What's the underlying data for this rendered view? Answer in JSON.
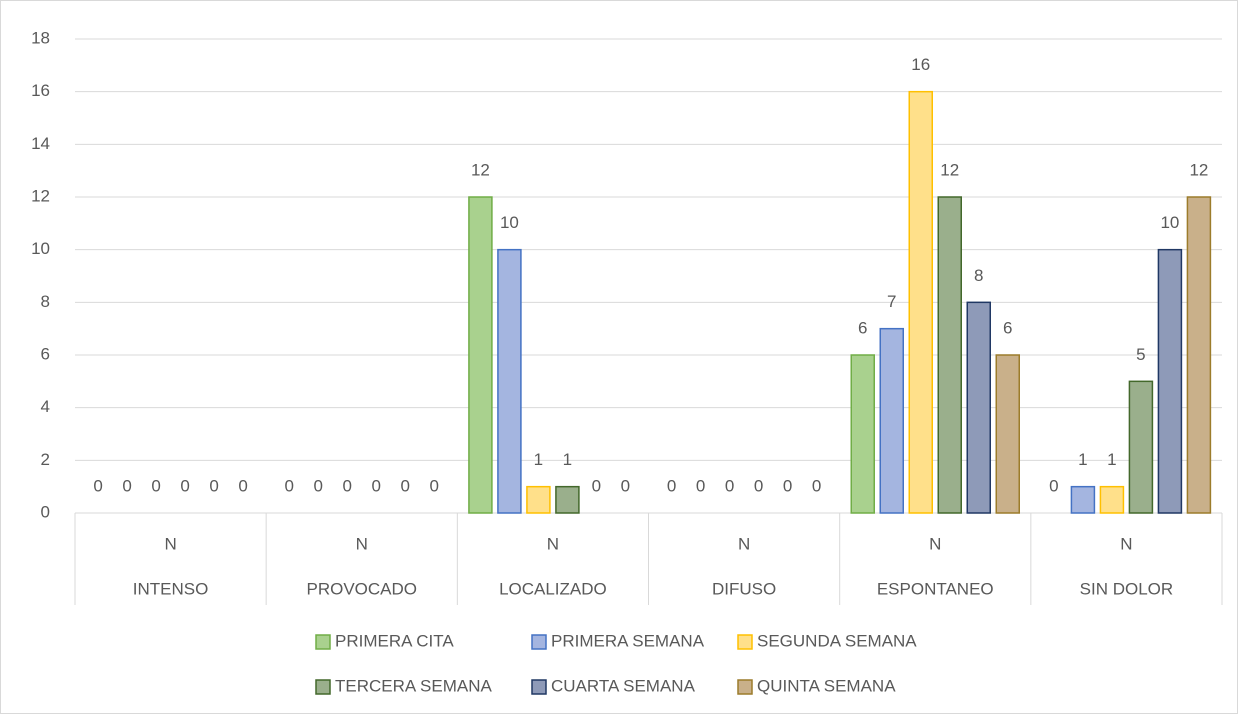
{
  "chart_data": {
    "type": "bar",
    "categories": [
      "N",
      "N",
      "N",
      "N",
      "N",
      "N"
    ],
    "category_groups": [
      "INTENSO",
      "PROVOCADO",
      "LOCALIZADO",
      "DIFUSO",
      "ESPONTANEO",
      "SIN DOLOR"
    ],
    "series": [
      {
        "name": "PRIMERA CITA",
        "color": "#a9d18e",
        "border": "#70ad47",
        "values": [
          0,
          0,
          12,
          0,
          6,
          0
        ]
      },
      {
        "name": "PRIMERA SEMANA",
        "color": "#a4b5e0",
        "border": "#4472c4",
        "values": [
          0,
          0,
          10,
          0,
          7,
          1
        ]
      },
      {
        "name": "SEGUNDA SEMANA",
        "color": "#ffe08a",
        "border": "#ffc000",
        "values": [
          0,
          0,
          1,
          0,
          16,
          1
        ]
      },
      {
        "name": "TERCERA SEMANA",
        "color": "#9aaf8c",
        "border": "#43682b",
        "values": [
          0,
          0,
          1,
          0,
          12,
          5
        ]
      },
      {
        "name": "CUARTA SEMANA",
        "color": "#8e9ab8",
        "border": "#203864",
        "values": [
          0,
          0,
          0,
          0,
          8,
          10
        ]
      },
      {
        "name": "QUINTA SEMANA",
        "color": "#c9b08a",
        "border": "#9c7c2b",
        "values": [
          0,
          0,
          0,
          0,
          6,
          12
        ]
      }
    ],
    "ylim": [
      0,
      18
    ],
    "yticks": [
      0,
      2,
      4,
      6,
      8,
      10,
      12,
      14,
      16,
      18
    ],
    "grid": true,
    "legend": "bottom"
  }
}
